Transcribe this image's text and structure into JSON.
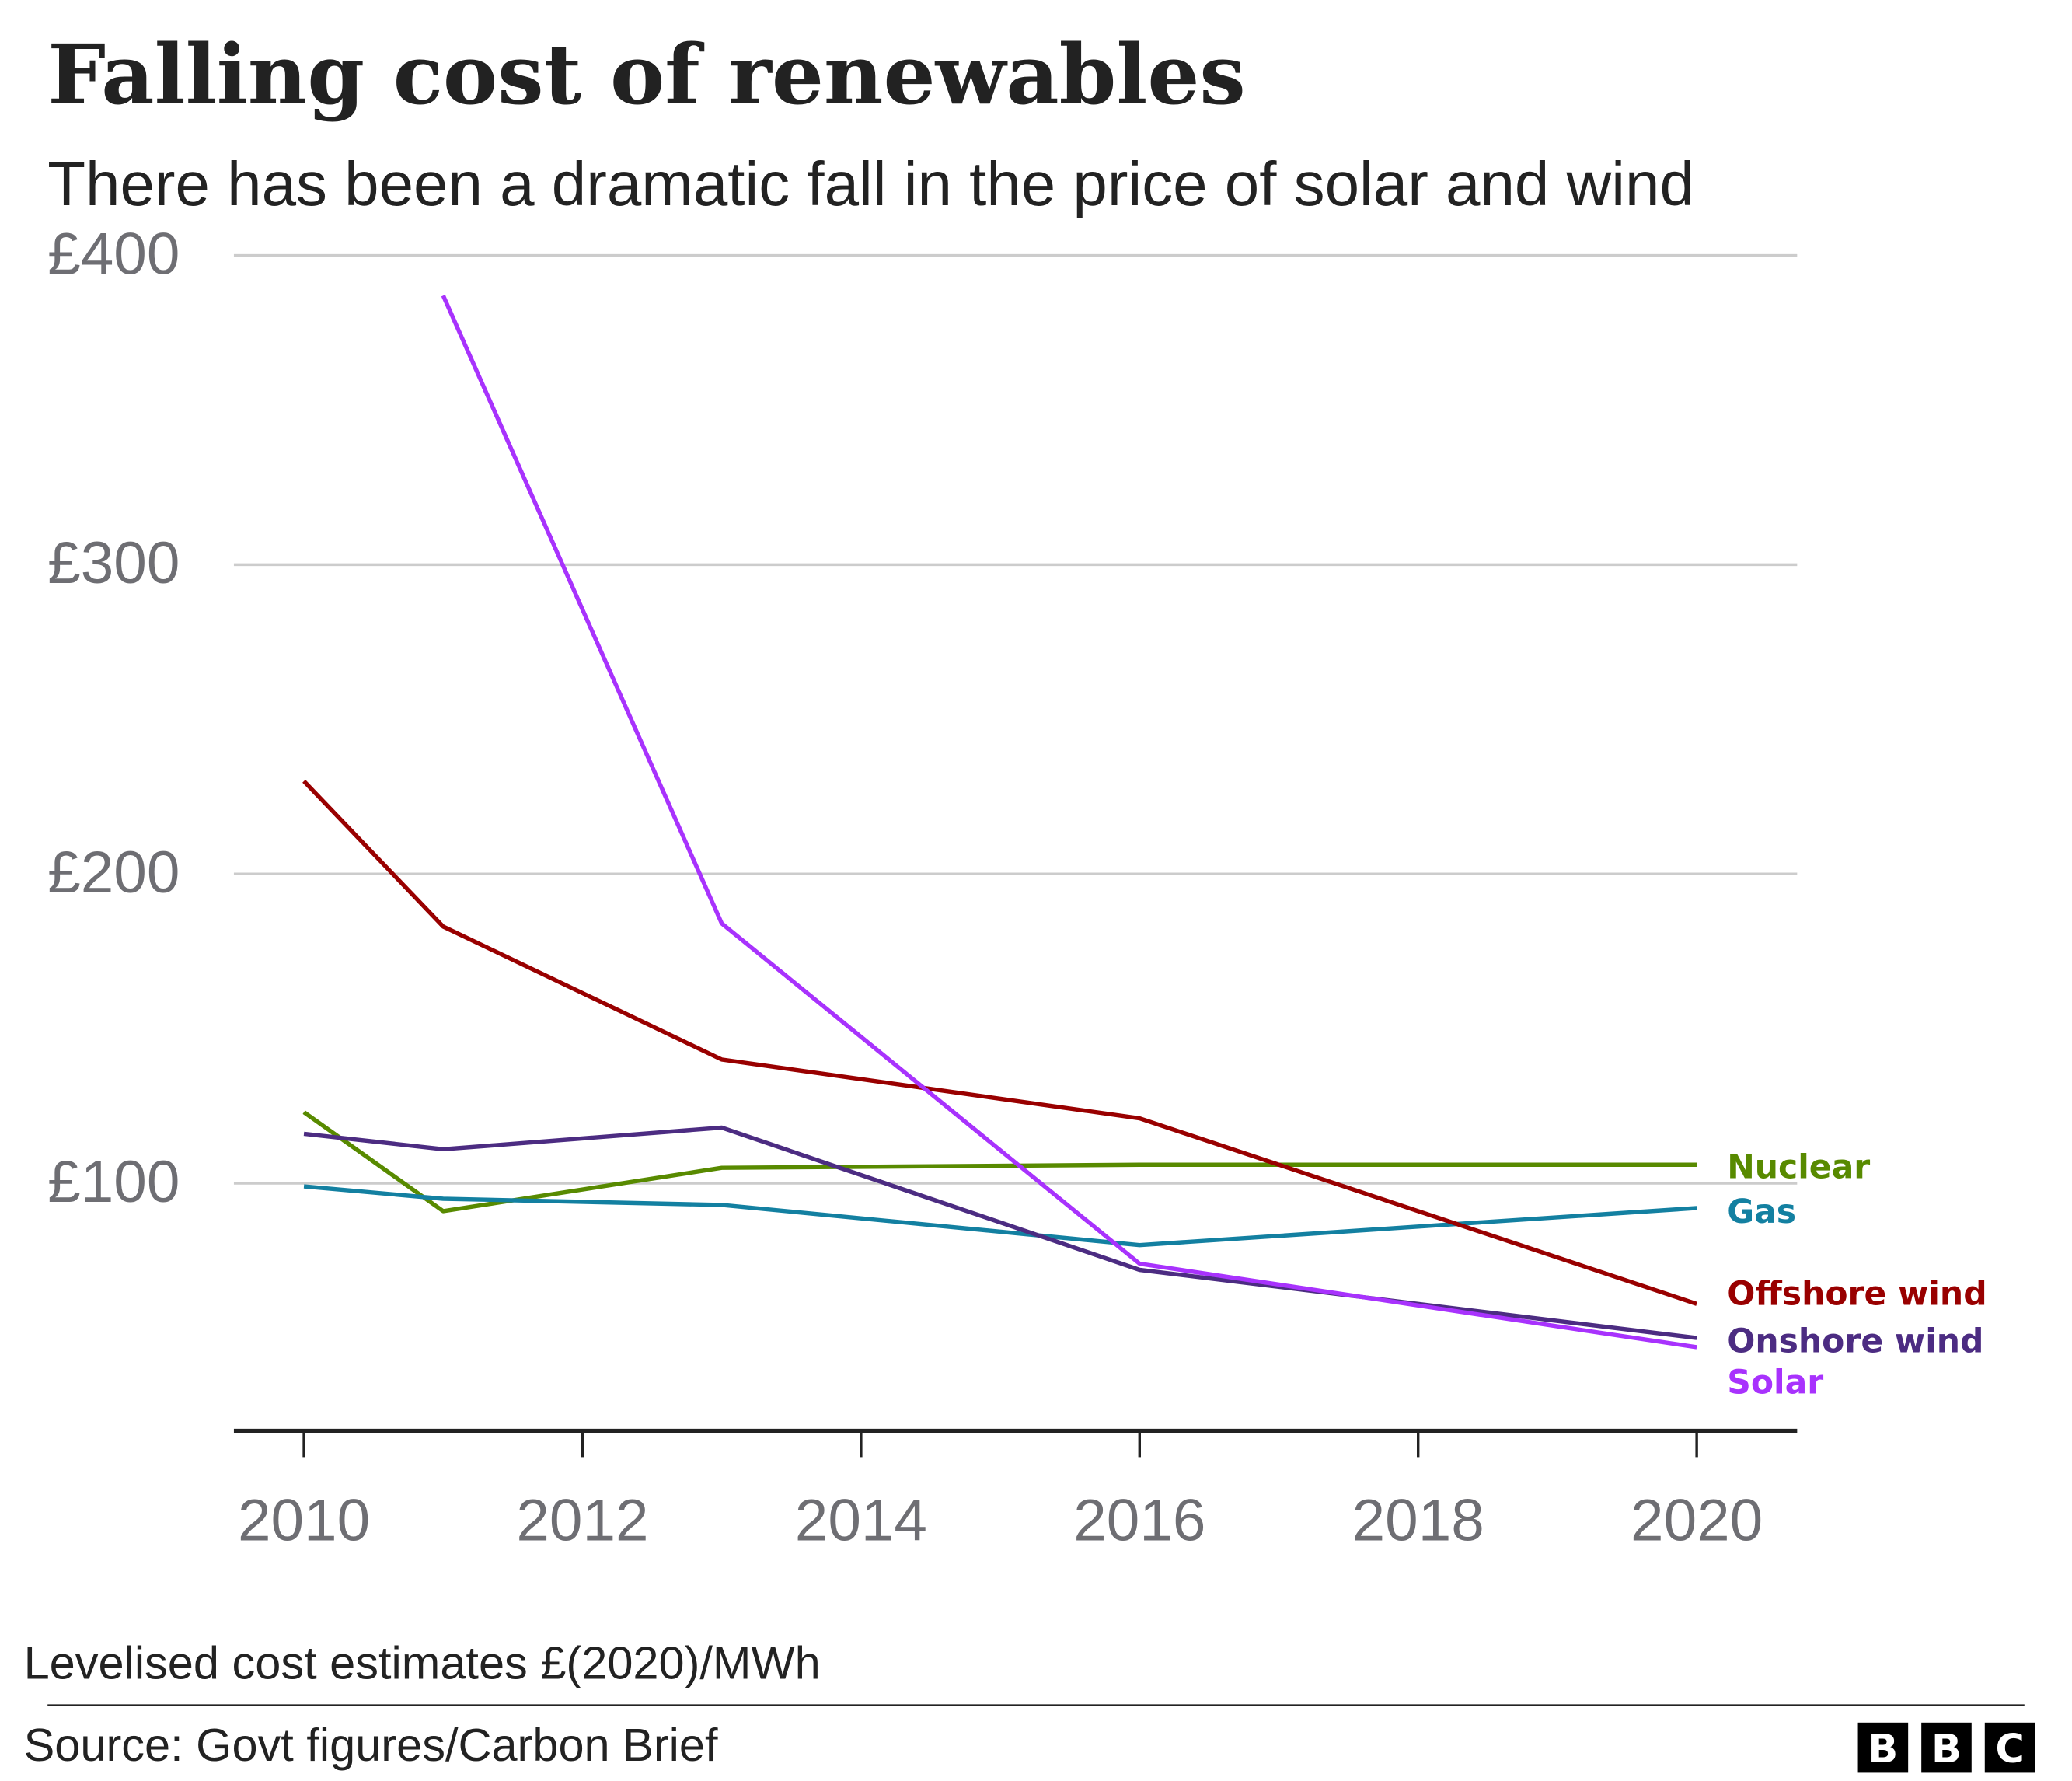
{
  "chart_data": {
    "type": "line",
    "title": "Falling cost of renewables",
    "subtitle": "There has been a dramatic fall in the price of solar and wind",
    "ylabel": "",
    "xlabel": "",
    "ylim": [
      20,
      400
    ],
    "xlim": [
      2009.5,
      2020.7
    ],
    "y_ticks": [
      100,
      200,
      300,
      400
    ],
    "y_tick_labels": [
      "£100",
      "£200",
      "£300",
      "£400"
    ],
    "x_ticks": [
      2010,
      2012,
      2014,
      2016,
      2018,
      2020
    ],
    "x_tick_labels": [
      "2010",
      "2012",
      "2014",
      "2016",
      "2018",
      "2020"
    ],
    "grid": "horizontal",
    "legend": "direct labels at right end of lines",
    "series": [
      {
        "name": "Nuclear",
        "color": "#588a00",
        "x": [
          2010,
          2011,
          2013,
          2016,
          2020
        ],
        "values": [
          123,
          91,
          105,
          106,
          106
        ]
      },
      {
        "name": "Gas",
        "color": "#1380a1",
        "x": [
          2010,
          2011,
          2013,
          2016,
          2020
        ],
        "values": [
          99,
          95,
          93,
          80,
          92
        ]
      },
      {
        "name": "Offshore wind",
        "color": "#990000",
        "x": [
          2010,
          2011,
          2013,
          2016,
          2020
        ],
        "values": [
          230,
          183,
          140,
          121,
          61
        ]
      },
      {
        "name": "Onshore wind",
        "color": "#4c2c82",
        "x": [
          2010,
          2011,
          2013,
          2016,
          2020
        ],
        "values": [
          116,
          111,
          118,
          72,
          50
        ]
      },
      {
        "name": "Solar",
        "color": "#a832fd",
        "x": [
          2011,
          2013,
          2016,
          2020
        ],
        "values": [
          387,
          184,
          74,
          47
        ]
      }
    ]
  },
  "footer": {
    "note": "Levelised cost estimates £(2020)/MWh",
    "source": "Source: Govt figures/Carbon Brief",
    "logo": "BBC"
  }
}
